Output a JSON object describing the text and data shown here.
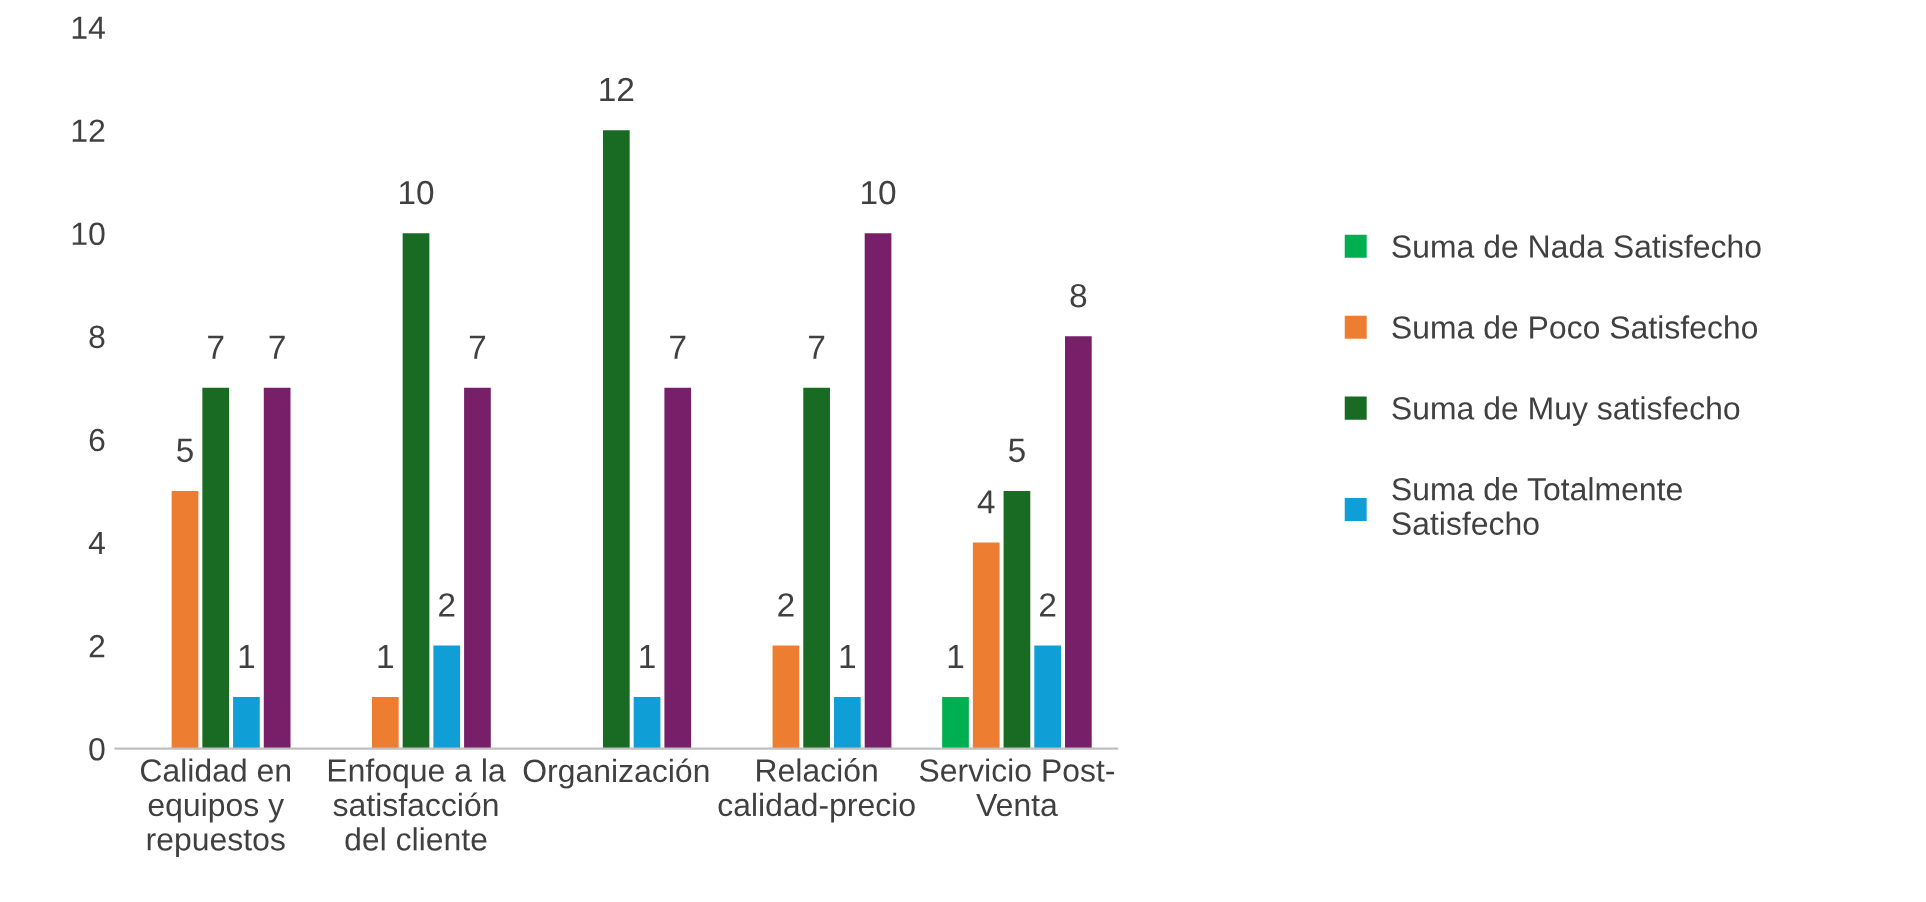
{
  "chart_data": {
    "type": "bar",
    "categories": [
      "Calidad en\nequipos y\nrepuestos",
      "Enfoque a la\nsatisfacción\ndel cliente",
      "Organización",
      "Relación\ncalidad-precio",
      "Servicio Post-\nVenta"
    ],
    "series": [
      {
        "name": "Suma de Nada Satisfecho",
        "color": "#00b050",
        "values": [
          null,
          null,
          null,
          null,
          1
        ]
      },
      {
        "name": "Suma de Poco Satisfecho",
        "color": "#ed7d31",
        "values": [
          5,
          1,
          null,
          2,
          4
        ]
      },
      {
        "name": "Suma de Muy satisfecho",
        "color": "#196b24",
        "values": [
          7,
          10,
          12,
          7,
          5
        ]
      },
      {
        "name": "Suma de Totalmente\nSatisfecho",
        "color": "#0f9ed5",
        "values": [
          1,
          2,
          1,
          1,
          2
        ]
      },
      {
        "color": "#772069",
        "values": [
          7,
          7,
          7,
          10,
          8
        ]
      }
    ],
    "ylim": [
      0,
      14
    ],
    "yticks": [
      0,
      2,
      4,
      6,
      8,
      10,
      12,
      14
    ],
    "data_labels": true,
    "grid": false,
    "legend": "right"
  }
}
